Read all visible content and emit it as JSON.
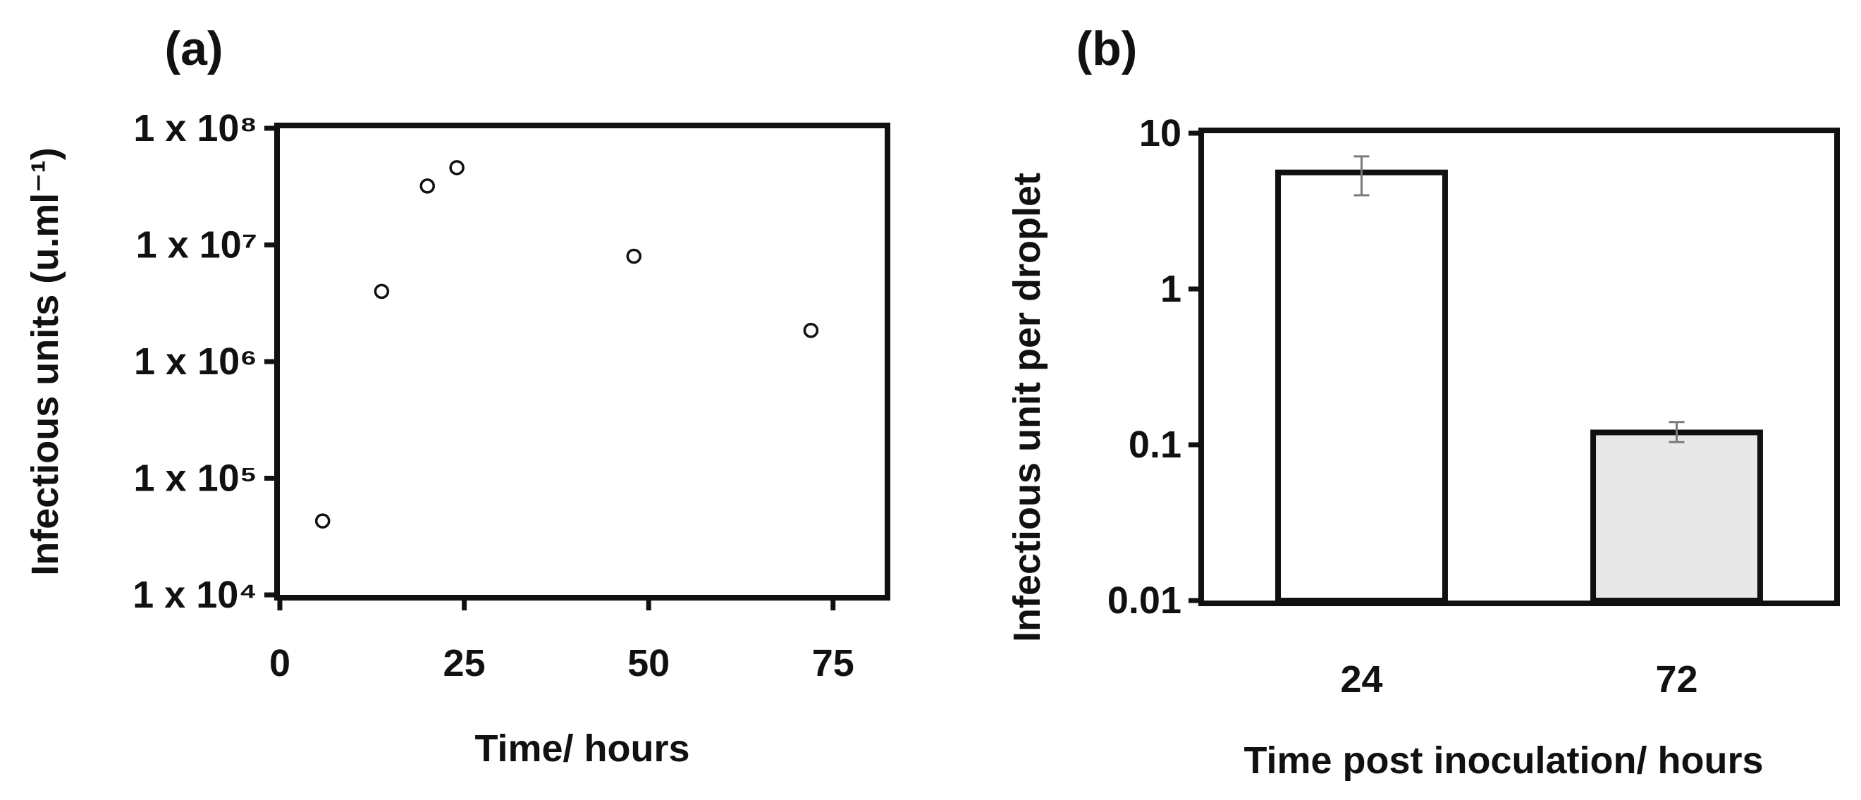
{
  "chart_data": [
    {
      "panel_label": "(a)",
      "type": "scatter",
      "xlabel": "Time/ hours",
      "ylabel": "Infectious units (u.ml⁻¹)",
      "x_ticks": [
        "0",
        "25",
        "50",
        "75"
      ],
      "y_ticks": [
        "1 x 10⁴",
        "1 x 10⁵",
        "1 x 10⁶",
        "1 x 10⁷",
        "1 x 10⁸"
      ],
      "xlim": [
        0,
        82
      ],
      "ylim": [
        10000,
        100000000
      ],
      "yscale": "log",
      "points": [
        {
          "x": 5.8,
          "y": 43000
        },
        {
          "x": 13.8,
          "y": 4000000
        },
        {
          "x": 20.0,
          "y": 32000000
        },
        {
          "x": 24.0,
          "y": 46000000
        },
        {
          "x": 48.0,
          "y": 8000000
        },
        {
          "x": 72.0,
          "y": 1850000
        }
      ],
      "marker": "open-circle",
      "grid": false
    },
    {
      "panel_label": "(b)",
      "type": "bar",
      "xlabel": "Time post inoculation/ hours",
      "ylabel": "Infectious unit per droplet",
      "categories": [
        "24",
        "72"
      ],
      "values": [
        5.6,
        0.12
      ],
      "error": [
        {
          "low": 4.0,
          "high": 7.1
        },
        {
          "low": 0.104,
          "high": 0.14
        }
      ],
      "bar_colors": [
        "#ffffff",
        "#e8e8e8"
      ],
      "y_ticks": [
        "10",
        "1",
        "0.1",
        "0.01"
      ],
      "ylim": [
        0.01,
        10
      ],
      "yscale": "log",
      "grid": false
    }
  ]
}
